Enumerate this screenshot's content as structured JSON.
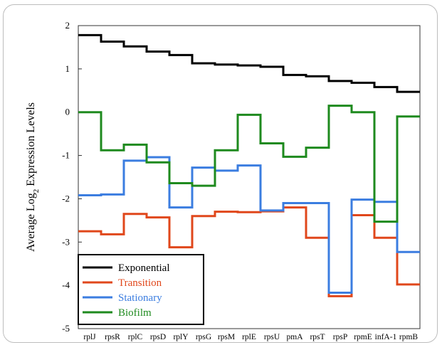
{
  "chart_data": {
    "type": "line",
    "step": true,
    "title": "",
    "xlabel": "",
    "ylabel": "Average Log2 Expression Levels",
    "ylabel_main": "Average Log",
    "ylabel_sub": "2",
    "ylabel_rest": " Expression Levels",
    "ylim": [
      -5,
      2
    ],
    "yticks": [
      2,
      1,
      0,
      -1,
      -2,
      -3,
      -4,
      -5
    ],
    "categories": [
      "rplJ",
      "rpsR",
      "rplC",
      "rpsD",
      "rplY",
      "rpsG",
      "rpsM",
      "rplE",
      "rpsU",
      "pmA",
      "rpsT",
      "rpsP",
      "rpmE",
      "infA-1",
      "rpmB"
    ],
    "legend_position": "bottom-left",
    "grid": false,
    "series": [
      {
        "name": "Exponential",
        "color": "#000000",
        "values": [
          1.78,
          1.63,
          1.52,
          1.4,
          1.32,
          1.13,
          1.1,
          1.08,
          1.05,
          0.86,
          0.83,
          0.72,
          0.68,
          0.58,
          0.47
        ]
      },
      {
        "name": "Transition",
        "color": "#e0471b",
        "values": [
          -2.75,
          -2.82,
          -2.35,
          -2.43,
          -3.12,
          -2.4,
          -2.3,
          -2.31,
          -2.29,
          -2.2,
          -2.9,
          -4.25,
          -2.38,
          -2.9,
          -3.98
        ]
      },
      {
        "name": "Stationary",
        "color": "#3b7de0",
        "values": [
          -1.92,
          -1.9,
          -1.12,
          -1.04,
          -2.2,
          -1.28,
          -1.35,
          -1.23,
          -2.27,
          -2.1,
          -2.1,
          -4.17,
          -2.02,
          -2.07,
          -3.23
        ]
      },
      {
        "name": "Biofilm",
        "color": "#1e8a1e",
        "values": [
          0.0,
          -0.88,
          -0.75,
          -1.16,
          -1.64,
          -1.7,
          -0.88,
          -0.06,
          -0.72,
          -1.03,
          -0.82,
          0.15,
          0.0,
          -2.53,
          -0.1
        ]
      }
    ]
  }
}
